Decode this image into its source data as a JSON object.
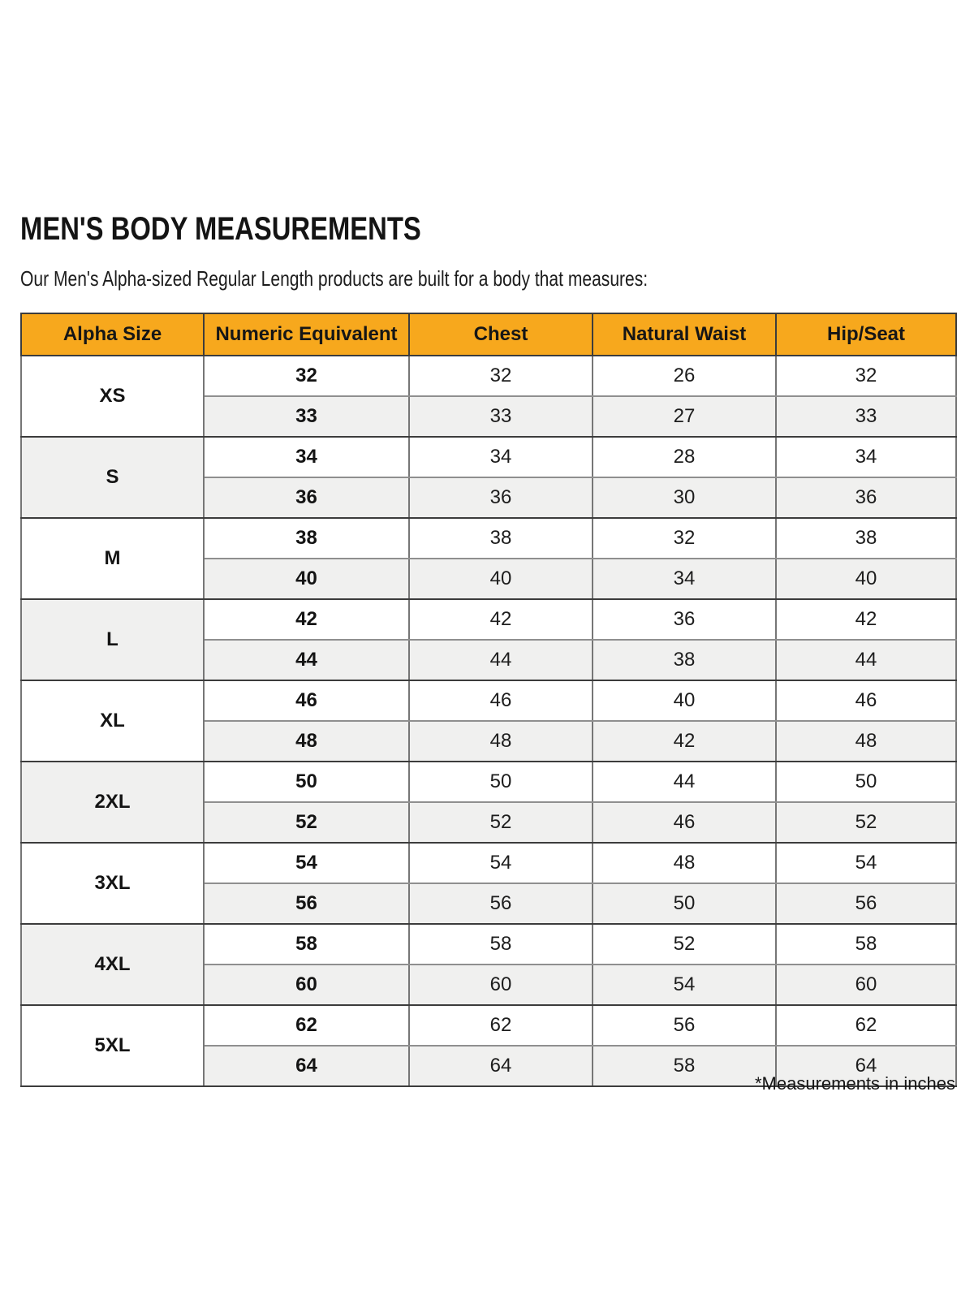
{
  "header": {
    "title": "MEN'S BODY MEASUREMENTS",
    "subtitle": "Our Men's Alpha-sized Regular Length products are built for a body that measures:"
  },
  "footnote": "*Measurements in inches",
  "colors": {
    "header_bg": "#f7a81d",
    "row_alt_bg": "#f0f0ef",
    "border_dark": "#3c3c3c",
    "border_mid": "#767676",
    "border_light": "#8f8f8f",
    "text": "#141414"
  },
  "chart_data": {
    "type": "table",
    "title": "Men's Body Measurements",
    "units": "inches",
    "columns": [
      "Alpha Size",
      "Numeric Equivalent",
      "Chest",
      "Natural Waist",
      "Hip/Seat"
    ],
    "value_columns": [
      "Numeric Equivalent",
      "Chest",
      "Natural Waist",
      "Hip/Seat"
    ],
    "groups": [
      {
        "alpha": "XS",
        "rows": [
          [
            32,
            32,
            26,
            32
          ],
          [
            33,
            33,
            27,
            33
          ]
        ]
      },
      {
        "alpha": "S",
        "rows": [
          [
            34,
            34,
            28,
            34
          ],
          [
            36,
            36,
            30,
            36
          ]
        ]
      },
      {
        "alpha": "M",
        "rows": [
          [
            38,
            38,
            32,
            38
          ],
          [
            40,
            40,
            34,
            40
          ]
        ]
      },
      {
        "alpha": "L",
        "rows": [
          [
            42,
            42,
            36,
            42
          ],
          [
            44,
            44,
            38,
            44
          ]
        ]
      },
      {
        "alpha": "XL",
        "rows": [
          [
            46,
            46,
            40,
            46
          ],
          [
            48,
            48,
            42,
            48
          ]
        ]
      },
      {
        "alpha": "2XL",
        "rows": [
          [
            50,
            50,
            44,
            50
          ],
          [
            52,
            52,
            46,
            52
          ]
        ]
      },
      {
        "alpha": "3XL",
        "rows": [
          [
            54,
            54,
            48,
            54
          ],
          [
            56,
            56,
            50,
            56
          ]
        ]
      },
      {
        "alpha": "4XL",
        "rows": [
          [
            58,
            58,
            52,
            58
          ],
          [
            60,
            60,
            54,
            60
          ]
        ]
      },
      {
        "alpha": "5XL",
        "rows": [
          [
            62,
            62,
            56,
            62
          ],
          [
            64,
            64,
            58,
            64
          ]
        ]
      }
    ]
  }
}
